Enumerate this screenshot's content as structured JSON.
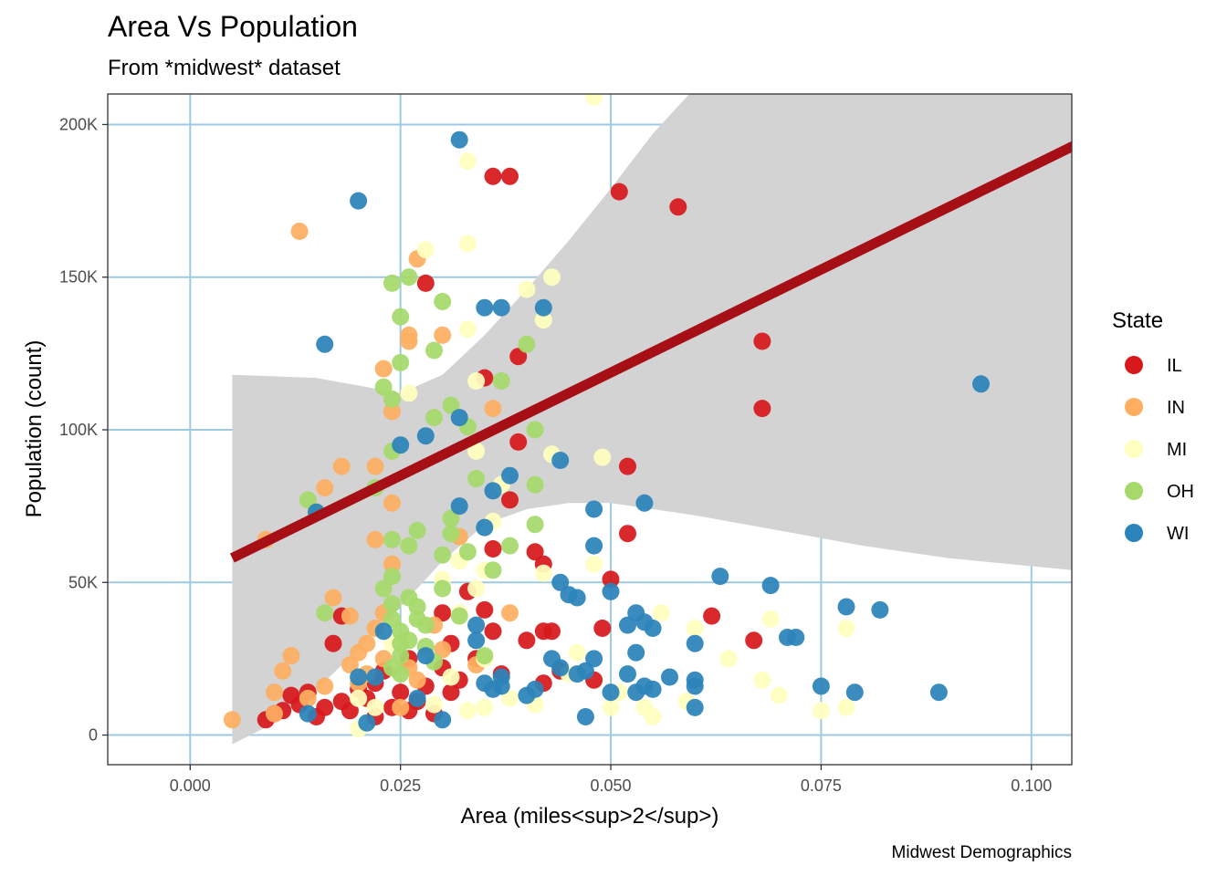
{
  "chart_data": {
    "type": "scatter",
    "title": "Area Vs Population",
    "subtitle": "From *midwest* dataset",
    "xlabel": "Area (miles<sup>2</sup>)",
    "ylabel": "Population (count)",
    "caption": "Midwest Demographics",
    "xlim": [
      -0.0098,
      0.1048
    ],
    "ylim": [
      -9700,
      210000
    ],
    "x_ticks": [
      0.0,
      0.025,
      0.05,
      0.075,
      0.1
    ],
    "x_tick_labels": [
      "0.000",
      "0.025",
      "0.050",
      "0.075",
      "0.100"
    ],
    "y_ticks": [
      0,
      50000,
      100000,
      150000,
      200000
    ],
    "y_tick_labels": [
      "0",
      "50K",
      "100K",
      "150K",
      "200K"
    ],
    "grid": true,
    "grid_color": "#9ecae1",
    "legend": {
      "title": "State",
      "position": "right"
    },
    "series": [
      {
        "name": "IL",
        "color": "#d7191c",
        "points": [
          [
            0.009,
            5000
          ],
          [
            0.01,
            7000
          ],
          [
            0.011,
            8000
          ],
          [
            0.012,
            13000
          ],
          [
            0.013,
            10000
          ],
          [
            0.014,
            14000
          ],
          [
            0.015,
            6000
          ],
          [
            0.016,
            9000
          ],
          [
            0.017,
            30000
          ],
          [
            0.018,
            11000
          ],
          [
            0.018,
            39000
          ],
          [
            0.019,
            8000
          ],
          [
            0.02,
            15000
          ],
          [
            0.021,
            12000
          ],
          [
            0.022,
            17000
          ],
          [
            0.022,
            6000
          ],
          [
            0.023,
            21000
          ],
          [
            0.024,
            9000
          ],
          [
            0.025,
            14000
          ],
          [
            0.026,
            8000
          ],
          [
            0.027,
            11000
          ],
          [
            0.028,
            148000
          ],
          [
            0.028,
            16000
          ],
          [
            0.029,
            7000
          ],
          [
            0.03,
            22000
          ],
          [
            0.031,
            30000
          ],
          [
            0.031,
            14000
          ],
          [
            0.032,
            18000
          ],
          [
            0.033,
            47000
          ],
          [
            0.034,
            25000
          ],
          [
            0.035,
            117000
          ],
          [
            0.035,
            41000
          ],
          [
            0.036,
            183000
          ],
          [
            0.036,
            61000
          ],
          [
            0.036,
            34000
          ],
          [
            0.037,
            20000
          ],
          [
            0.038,
            183000
          ],
          [
            0.038,
            77000
          ],
          [
            0.039,
            124000
          ],
          [
            0.039,
            96000
          ],
          [
            0.04,
            31000
          ],
          [
            0.041,
            60000
          ],
          [
            0.042,
            56000
          ],
          [
            0.042,
            34000
          ],
          [
            0.042,
            17000
          ],
          [
            0.043,
            34000
          ],
          [
            0.044,
            21000
          ],
          [
            0.048,
            18000
          ],
          [
            0.049,
            35000
          ],
          [
            0.05,
            51000
          ],
          [
            0.051,
            178000
          ],
          [
            0.052,
            88000
          ],
          [
            0.052,
            66000
          ],
          [
            0.058,
            173000
          ],
          [
            0.062,
            39000
          ],
          [
            0.067,
            31000
          ],
          [
            0.068,
            129000
          ],
          [
            0.068,
            107000
          ],
          [
            0.026,
            25000
          ],
          [
            0.03,
            40000
          ]
        ]
      },
      {
        "name": "IN",
        "color": "#fdae61",
        "points": [
          [
            0.005,
            5000
          ],
          [
            0.009,
            64000
          ],
          [
            0.01,
            14000
          ],
          [
            0.01,
            7000
          ],
          [
            0.011,
            21000
          ],
          [
            0.012,
            26000
          ],
          [
            0.013,
            165000
          ],
          [
            0.014,
            12000
          ],
          [
            0.016,
            16000
          ],
          [
            0.016,
            81000
          ],
          [
            0.017,
            45000
          ],
          [
            0.018,
            88000
          ],
          [
            0.019,
            23000
          ],
          [
            0.019,
            39000
          ],
          [
            0.02,
            27000
          ],
          [
            0.02,
            17000
          ],
          [
            0.021,
            30000
          ],
          [
            0.022,
            88000
          ],
          [
            0.022,
            64000
          ],
          [
            0.022,
            35000
          ],
          [
            0.023,
            120000
          ],
          [
            0.023,
            25000
          ],
          [
            0.024,
            106000
          ],
          [
            0.024,
            76000
          ],
          [
            0.024,
            56000
          ],
          [
            0.025,
            9000
          ],
          [
            0.026,
            131000
          ],
          [
            0.026,
            129000
          ],
          [
            0.026,
            22000
          ],
          [
            0.027,
            156000
          ],
          [
            0.027,
            18000
          ],
          [
            0.029,
            36000
          ],
          [
            0.03,
            131000
          ],
          [
            0.03,
            28000
          ],
          [
            0.032,
            65000
          ],
          [
            0.034,
            23000
          ],
          [
            0.036,
            107000
          ],
          [
            0.038,
            40000
          ],
          [
            0.021,
            20000
          ],
          [
            0.023,
            40000
          ]
        ]
      },
      {
        "name": "MI",
        "color": "#ffffbf",
        "points": [
          [
            0.02,
            2000
          ],
          [
            0.02,
            12000
          ],
          [
            0.022,
            9000
          ],
          [
            0.024,
            30000
          ],
          [
            0.026,
            112000
          ],
          [
            0.028,
            159000
          ],
          [
            0.029,
            10000
          ],
          [
            0.03,
            51000
          ],
          [
            0.031,
            19000
          ],
          [
            0.032,
            57000
          ],
          [
            0.032,
            40000
          ],
          [
            0.033,
            188000
          ],
          [
            0.033,
            161000
          ],
          [
            0.033,
            133000
          ],
          [
            0.033,
            8000
          ],
          [
            0.034,
            116000
          ],
          [
            0.034,
            93000
          ],
          [
            0.034,
            48000
          ],
          [
            0.035,
            54000
          ],
          [
            0.035,
            9000
          ],
          [
            0.036,
            70000
          ],
          [
            0.037,
            82000
          ],
          [
            0.038,
            12000
          ],
          [
            0.04,
            146000
          ],
          [
            0.041,
            10000
          ],
          [
            0.042,
            136000
          ],
          [
            0.042,
            53000
          ],
          [
            0.043,
            92000
          ],
          [
            0.043,
            150000
          ],
          [
            0.045,
            20000
          ],
          [
            0.046,
            27000
          ],
          [
            0.048,
            209000
          ],
          [
            0.048,
            56000
          ],
          [
            0.049,
            91000
          ],
          [
            0.05,
            9000
          ],
          [
            0.051,
            14000
          ],
          [
            0.054,
            9000
          ],
          [
            0.055,
            6000
          ],
          [
            0.056,
            40000
          ],
          [
            0.059,
            11000
          ],
          [
            0.06,
            35000
          ],
          [
            0.064,
            25000
          ],
          [
            0.068,
            18000
          ],
          [
            0.069,
            38000
          ],
          [
            0.07,
            13000
          ],
          [
            0.075,
            8000
          ],
          [
            0.078,
            35000
          ],
          [
            0.078,
            9000
          ],
          [
            0.035,
            25000
          ],
          [
            0.036,
            16000
          ]
        ]
      },
      {
        "name": "OH",
        "color": "#a6d96a",
        "points": [
          [
            0.014,
            77000
          ],
          [
            0.015,
            73000
          ],
          [
            0.016,
            40000
          ],
          [
            0.022,
            81000
          ],
          [
            0.023,
            114000
          ],
          [
            0.023,
            48000
          ],
          [
            0.024,
            110000
          ],
          [
            0.024,
            93000
          ],
          [
            0.024,
            64000
          ],
          [
            0.024,
            148000
          ],
          [
            0.024,
            52000
          ],
          [
            0.024,
            43000
          ],
          [
            0.024,
            38000
          ],
          [
            0.025,
            137000
          ],
          [
            0.025,
            122000
          ],
          [
            0.025,
            34000
          ],
          [
            0.025,
            30000
          ],
          [
            0.025,
            26000
          ],
          [
            0.025,
            20000
          ],
          [
            0.026,
            150000
          ],
          [
            0.026,
            62000
          ],
          [
            0.026,
            45000
          ],
          [
            0.027,
            67000
          ],
          [
            0.027,
            38000
          ],
          [
            0.027,
            42000
          ],
          [
            0.028,
            36000
          ],
          [
            0.028,
            29000
          ],
          [
            0.029,
            126000
          ],
          [
            0.029,
            104000
          ],
          [
            0.029,
            24000
          ],
          [
            0.03,
            142000
          ],
          [
            0.03,
            59000
          ],
          [
            0.03,
            48000
          ],
          [
            0.031,
            108000
          ],
          [
            0.031,
            71000
          ],
          [
            0.031,
            66000
          ],
          [
            0.032,
            39000
          ],
          [
            0.033,
            101000
          ],
          [
            0.033,
            60000
          ],
          [
            0.034,
            84000
          ],
          [
            0.035,
            26000
          ],
          [
            0.036,
            54000
          ],
          [
            0.037,
            116000
          ],
          [
            0.038,
            62000
          ],
          [
            0.04,
            128000
          ],
          [
            0.041,
            100000
          ],
          [
            0.041,
            82000
          ],
          [
            0.041,
            69000
          ],
          [
            0.024,
            22000
          ],
          [
            0.026,
            31000
          ]
        ]
      },
      {
        "name": "WI",
        "color": "#2b83ba",
        "points": [
          [
            0.014,
            7000
          ],
          [
            0.015,
            73000
          ],
          [
            0.016,
            128000
          ],
          [
            0.02,
            175000
          ],
          [
            0.02,
            19000
          ],
          [
            0.021,
            4000
          ],
          [
            0.022,
            19000
          ],
          [
            0.023,
            34000
          ],
          [
            0.027,
            12000
          ],
          [
            0.028,
            26000
          ],
          [
            0.028,
            98000
          ],
          [
            0.025,
            95000
          ],
          [
            0.03,
            5000
          ],
          [
            0.032,
            195000
          ],
          [
            0.032,
            75000
          ],
          [
            0.032,
            104000
          ],
          [
            0.034,
            36000
          ],
          [
            0.034,
            31000
          ],
          [
            0.035,
            17000
          ],
          [
            0.035,
            68000
          ],
          [
            0.035,
            140000
          ],
          [
            0.036,
            80000
          ],
          [
            0.036,
            15000
          ],
          [
            0.037,
            140000
          ],
          [
            0.037,
            16000
          ],
          [
            0.037,
            19000
          ],
          [
            0.038,
            85000
          ],
          [
            0.04,
            13000
          ],
          [
            0.041,
            15000
          ],
          [
            0.042,
            140000
          ],
          [
            0.043,
            25000
          ],
          [
            0.044,
            90000
          ],
          [
            0.044,
            22000
          ],
          [
            0.044,
            50000
          ],
          [
            0.045,
            46000
          ],
          [
            0.046,
            20000
          ],
          [
            0.046,
            45000
          ],
          [
            0.047,
            6000
          ],
          [
            0.047,
            21000
          ],
          [
            0.048,
            25000
          ],
          [
            0.048,
            74000
          ],
          [
            0.048,
            62000
          ],
          [
            0.05,
            14000
          ],
          [
            0.05,
            47000
          ],
          [
            0.052,
            20000
          ],
          [
            0.052,
            36000
          ],
          [
            0.053,
            40000
          ],
          [
            0.053,
            27000
          ],
          [
            0.053,
            14000
          ],
          [
            0.054,
            37000
          ],
          [
            0.054,
            76000
          ],
          [
            0.054,
            16000
          ],
          [
            0.055,
            15000
          ],
          [
            0.055,
            35000
          ],
          [
            0.057,
            19000
          ],
          [
            0.06,
            18000
          ],
          [
            0.06,
            30000
          ],
          [
            0.06,
            9000
          ],
          [
            0.06,
            16000
          ],
          [
            0.063,
            52000
          ],
          [
            0.069,
            49000
          ],
          [
            0.071,
            32000
          ],
          [
            0.072,
            32000
          ],
          [
            0.075,
            16000
          ],
          [
            0.078,
            42000
          ],
          [
            0.079,
            14000
          ],
          [
            0.082,
            41000
          ],
          [
            0.089,
            14000
          ],
          [
            0.094,
            115000
          ]
        ]
      }
    ],
    "trend_line": {
      "color": "#a50f15",
      "points": [
        [
          0.005,
          58000
        ],
        [
          0.105,
          193000
        ]
      ]
    },
    "confidence_band": {
      "color": "#d3d3d3",
      "upper": [
        [
          0.005,
          118000
        ],
        [
          0.015,
          117000
        ],
        [
          0.025,
          112000
        ],
        [
          0.03,
          118000
        ],
        [
          0.035,
          131000
        ],
        [
          0.04,
          146000
        ],
        [
          0.045,
          162000
        ],
        [
          0.05,
          179000
        ],
        [
          0.055,
          197000
        ],
        [
          0.06,
          212000
        ],
        [
          0.065,
          228000
        ],
        [
          0.07,
          245000
        ],
        [
          0.08,
          279000
        ],
        [
          0.09,
          313000
        ],
        [
          0.105,
          363000
        ]
      ],
      "lower": [
        [
          0.005,
          -3000
        ],
        [
          0.01,
          4000
        ],
        [
          0.015,
          15000
        ],
        [
          0.02,
          28000
        ],
        [
          0.025,
          42000
        ],
        [
          0.03,
          57000
        ],
        [
          0.035,
          69000
        ],
        [
          0.04,
          74000
        ],
        [
          0.045,
          76000
        ],
        [
          0.05,
          76000
        ],
        [
          0.055,
          74000
        ],
        [
          0.06,
          72000
        ],
        [
          0.07,
          67000
        ],
        [
          0.08,
          62000
        ],
        [
          0.09,
          58000
        ],
        [
          0.105,
          54000
        ]
      ]
    }
  }
}
